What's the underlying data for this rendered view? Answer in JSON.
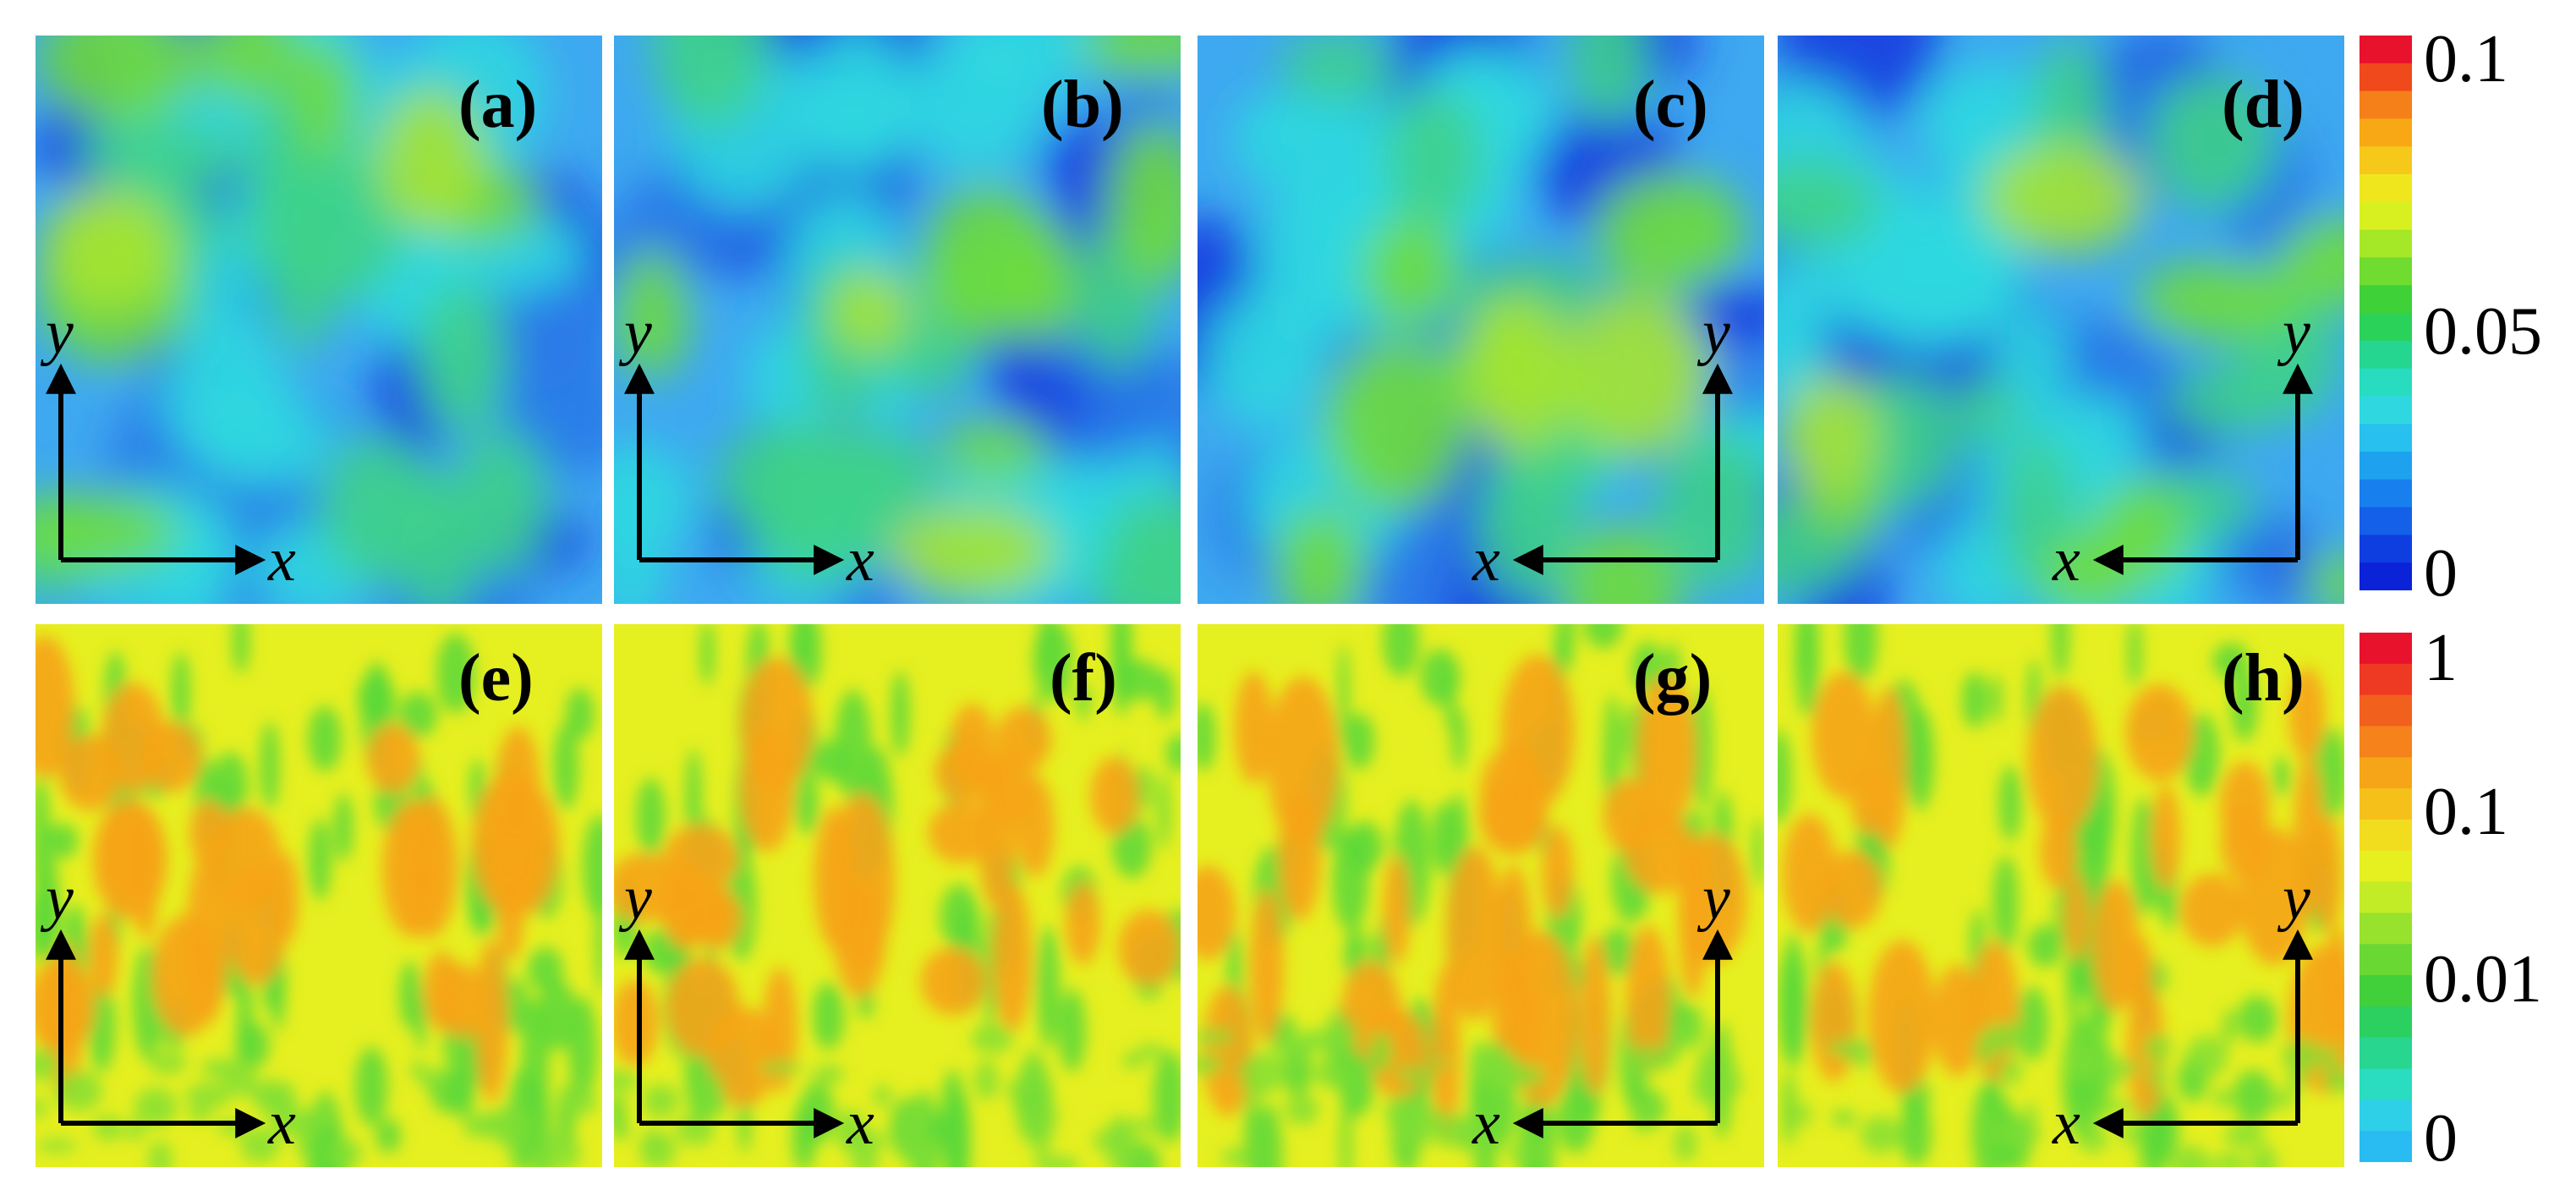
{
  "figure": {
    "top_row": {
      "panels": [
        {
          "label": "(a)",
          "axes": {
            "x": "x",
            "y": "y"
          },
          "x_direction": "right"
        },
        {
          "label": "(b)",
          "axes": {
            "x": "x",
            "y": "y"
          },
          "x_direction": "right"
        },
        {
          "label": "(c)",
          "axes": {
            "x": "x",
            "y": "y"
          },
          "x_direction": "left"
        },
        {
          "label": "(d)",
          "axes": {
            "x": "x",
            "y": "y"
          },
          "x_direction": "left"
        }
      ],
      "colorbar": {
        "ticks": [
          "0.1",
          "0.05",
          "0"
        ],
        "colors": [
          "#e8122d",
          "#f04a1c",
          "#f5801a",
          "#f7a814",
          "#f5c81a",
          "#f0e61e",
          "#d9f020",
          "#a5e828",
          "#6fdc2f",
          "#3ed238",
          "#2ad25a",
          "#25d690",
          "#28dcc0",
          "#2fd8e0",
          "#28c0ee",
          "#1ea2f0",
          "#1880ee",
          "#1460e8",
          "#0f3ee0",
          "#0a22d8"
        ]
      }
    },
    "bottom_row": {
      "panels": [
        {
          "label": "(e)",
          "axes": {
            "x": "x",
            "y": "y"
          },
          "x_direction": "right"
        },
        {
          "label": "(f)",
          "axes": {
            "x": "x",
            "y": "y"
          },
          "x_direction": "right"
        },
        {
          "label": "(g)",
          "axes": {
            "x": "x",
            "y": "y"
          },
          "x_direction": "left"
        },
        {
          "label": "(h)",
          "axes": {
            "x": "x",
            "y": "y"
          },
          "x_direction": "left"
        }
      ],
      "colorbar": {
        "ticks": [
          "1",
          "0.1",
          "0.01",
          "0"
        ],
        "colors": [
          "#e8122d",
          "#ee3a22",
          "#f2601e",
          "#f5821a",
          "#f6a418",
          "#f6c01a",
          "#f2dc1e",
          "#e6ef20",
          "#c2ec26",
          "#96e22c",
          "#6ad832",
          "#42d03a",
          "#2cd060",
          "#28d690",
          "#2adcc0",
          "#2ed0e8",
          "#28bcf2"
        ]
      }
    }
  }
}
